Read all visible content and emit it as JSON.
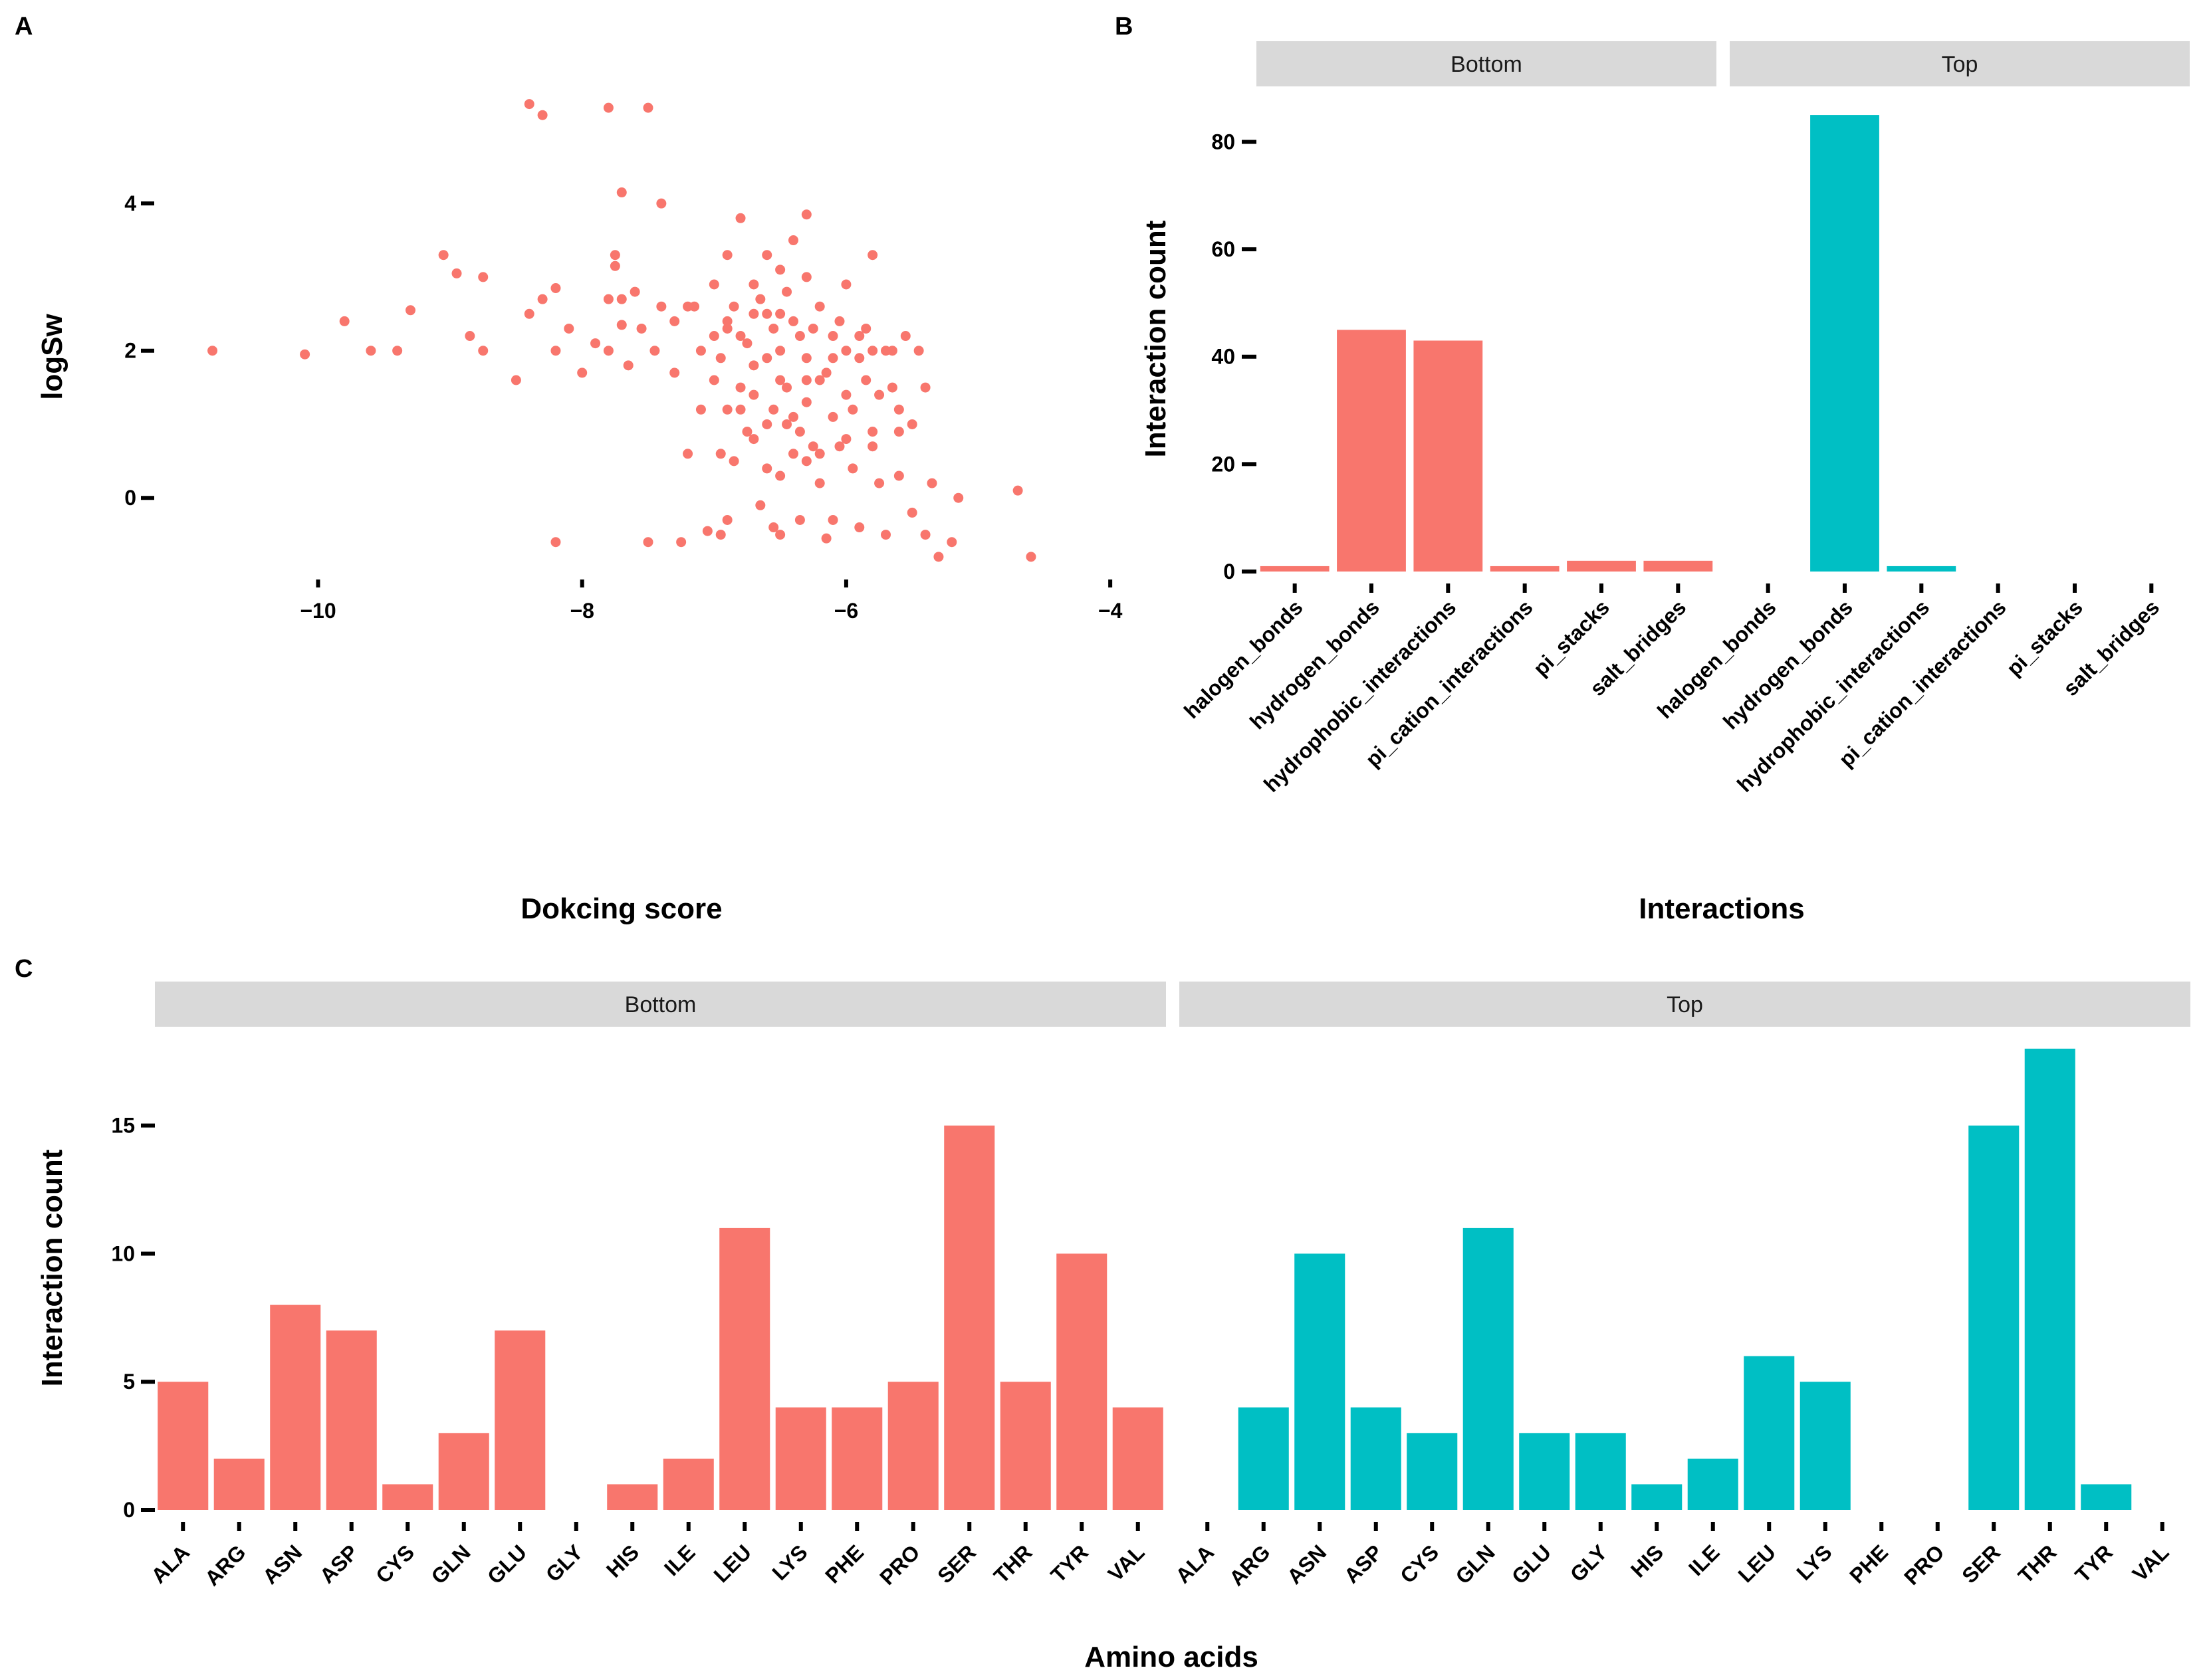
{
  "chart_data": [
    {
      "panel": "A",
      "type": "scatter",
      "xlabel": "Dokcing score",
      "ylabel": "logSw",
      "xlim": [
        -11.1,
        -3.9
      ],
      "ylim": [
        -1.0,
        5.5
      ],
      "xticks": [
        -10,
        -8,
        -6,
        -4
      ],
      "xtick_labels": [
        "−10",
        "−8",
        "−6",
        "−4"
      ],
      "yticks": [
        0,
        2,
        4
      ],
      "ytick_labels": [
        "0",
        "2",
        "4"
      ],
      "color": "#F8766D",
      "points": [
        [
          -10.8,
          2.0
        ],
        [
          -10.1,
          1.95
        ],
        [
          -9.8,
          2.4
        ],
        [
          -9.6,
          2.0
        ],
        [
          -9.4,
          2.0
        ],
        [
          -9.3,
          2.55
        ],
        [
          -9.05,
          3.3
        ],
        [
          -8.95,
          3.05
        ],
        [
          -8.85,
          2.2
        ],
        [
          -8.75,
          3.0
        ],
        [
          -8.75,
          2.0
        ],
        [
          -8.5,
          1.6
        ],
        [
          -8.4,
          5.35
        ],
        [
          -8.4,
          2.5
        ],
        [
          -8.3,
          5.2
        ],
        [
          -8.3,
          2.7
        ],
        [
          -8.2,
          2.85
        ],
        [
          -8.2,
          2.0
        ],
        [
          -8.2,
          -0.6
        ],
        [
          -8.1,
          2.3
        ],
        [
          -8.0,
          1.7
        ],
        [
          -7.9,
          2.1
        ],
        [
          -7.8,
          5.3
        ],
        [
          -7.8,
          2.7
        ],
        [
          -7.8,
          2.0
        ],
        [
          -7.75,
          3.3
        ],
        [
          -7.75,
          3.15
        ],
        [
          -7.7,
          4.15
        ],
        [
          -7.7,
          2.7
        ],
        [
          -7.7,
          2.35
        ],
        [
          -7.65,
          1.8
        ],
        [
          -7.6,
          2.8
        ],
        [
          -7.55,
          2.3
        ],
        [
          -7.5,
          5.3
        ],
        [
          -7.5,
          -0.6
        ],
        [
          -7.45,
          2.0
        ],
        [
          -7.4,
          4.0
        ],
        [
          -7.4,
          2.6
        ],
        [
          -7.3,
          2.4
        ],
        [
          -7.3,
          1.7
        ],
        [
          -7.25,
          -0.6
        ],
        [
          -7.2,
          2.6
        ],
        [
          -7.2,
          0.6
        ],
        [
          -7.15,
          2.6
        ],
        [
          -7.1,
          2.0
        ],
        [
          -7.05,
          -0.45
        ],
        [
          -7.0,
          1.6
        ],
        [
          -6.95,
          0.6
        ],
        [
          -6.95,
          -0.5
        ],
        [
          -6.9,
          3.3
        ],
        [
          -6.9,
          2.3
        ],
        [
          -6.9,
          1.2
        ],
        [
          -6.85,
          0.5
        ],
        [
          -6.8,
          3.8
        ],
        [
          -6.8,
          2.2
        ],
        [
          -6.8,
          1.5
        ],
        [
          -6.75,
          0.9
        ],
        [
          -6.7,
          2.9
        ],
        [
          -6.7,
          1.8
        ],
        [
          -6.7,
          0.8
        ],
        [
          -6.65,
          -0.1
        ],
        [
          -6.6,
          3.3
        ],
        [
          -6.6,
          2.5
        ],
        [
          -6.6,
          1.0
        ],
        [
          -6.55,
          -0.4
        ],
        [
          -6.5,
          3.1
        ],
        [
          -6.5,
          2.0
        ],
        [
          -6.5,
          0.3
        ],
        [
          -6.45,
          1.5
        ],
        [
          -6.4,
          3.5
        ],
        [
          -6.4,
          2.4
        ],
        [
          -6.4,
          0.6
        ],
        [
          -6.35,
          -0.3
        ],
        [
          -6.3,
          3.85
        ],
        [
          -6.3,
          3.0
        ],
        [
          -6.3,
          1.9
        ],
        [
          -6.3,
          1.3
        ],
        [
          -6.25,
          0.7
        ],
        [
          -6.2,
          2.6
        ],
        [
          -6.2,
          1.6
        ],
        [
          -6.2,
          0.2
        ],
        [
          -6.15,
          -0.55
        ],
        [
          -6.1,
          2.2
        ],
        [
          -6.1,
          1.1
        ],
        [
          -6.05,
          0.7
        ],
        [
          -6.0,
          2.9
        ],
        [
          -6.0,
          2.0
        ],
        [
          -6.0,
          1.4
        ],
        [
          -5.95,
          0.4
        ],
        [
          -5.9,
          -0.4
        ],
        [
          -5.9,
          2.2
        ],
        [
          -5.85,
          1.6
        ],
        [
          -5.8,
          3.3
        ],
        [
          -5.8,
          2.0
        ],
        [
          -5.8,
          0.9
        ],
        [
          -5.75,
          0.2
        ],
        [
          -5.7,
          2.0
        ],
        [
          -5.7,
          -0.5
        ],
        [
          -5.65,
          1.5
        ],
        [
          -5.6,
          1.2
        ],
        [
          -5.6,
          0.3
        ],
        [
          -5.55,
          2.2
        ],
        [
          -5.5,
          1.0
        ],
        [
          -5.5,
          -0.2
        ],
        [
          -5.45,
          2.0
        ],
        [
          -5.4,
          1.5
        ],
        [
          -5.4,
          -0.5
        ],
        [
          -5.35,
          0.2
        ],
        [
          -5.3,
          -0.8
        ],
        [
          -5.2,
          -0.6
        ],
        [
          -5.15,
          0.0
        ],
        [
          -4.7,
          0.1
        ],
        [
          -4.6,
          -0.8
        ],
        [
          -6.9,
          2.4
        ],
        [
          -6.85,
          2.6
        ],
        [
          -6.75,
          2.1
        ],
        [
          -6.7,
          1.4
        ],
        [
          -6.65,
          2.7
        ],
        [
          -6.55,
          1.2
        ],
        [
          -6.45,
          2.8
        ],
        [
          -6.4,
          1.1
        ],
        [
          -6.35,
          2.2
        ],
        [
          -6.3,
          1.6
        ],
        [
          -6.25,
          2.3
        ],
        [
          -6.15,
          1.7
        ],
        [
          -6.1,
          1.9
        ],
        [
          -6.05,
          2.4
        ],
        [
          -5.95,
          1.2
        ],
        [
          -5.9,
          1.9
        ],
        [
          -5.85,
          2.3
        ],
        [
          -5.75,
          1.4
        ],
        [
          -5.65,
          2.0
        ],
        [
          -5.6,
          0.9
        ],
        [
          -6.5,
          1.6
        ],
        [
          -6.35,
          0.9
        ],
        [
          -6.2,
          0.6
        ],
        [
          -6.0,
          0.8
        ],
        [
          -5.8,
          0.7
        ],
        [
          -6.6,
          1.9
        ],
        [
          -6.55,
          2.3
        ],
        [
          -6.45,
          1.0
        ],
        [
          -6.3,
          0.5
        ],
        [
          -6.1,
          -0.3
        ],
        [
          -7.0,
          2.2
        ],
        [
          -6.95,
          1.9
        ],
        [
          -6.8,
          1.2
        ],
        [
          -6.7,
          2.5
        ],
        [
          -7.1,
          1.2
        ],
        [
          -6.6,
          0.4
        ],
        [
          -6.5,
          -0.5
        ],
        [
          -6.9,
          -0.3
        ],
        [
          -7.0,
          2.9
        ],
        [
          -6.5,
          2.5
        ]
      ]
    },
    {
      "panel": "B",
      "type": "bar",
      "xlabel": "Interactions",
      "ylabel": "Interaction count",
      "ylim": [
        0,
        86
      ],
      "yticks": [
        0,
        20,
        40,
        60,
        80
      ],
      "ytick_labels": [
        "0",
        "20",
        "40",
        "60",
        "80"
      ],
      "categories": [
        "halogen_bonds",
        "hydrogen_bonds",
        "hydrophobic_interactions",
        "pi_cation_interactions",
        "pi_stacks",
        "salt_bridges"
      ],
      "series": [
        {
          "name": "Bottom",
          "color": "#F8766D",
          "values": [
            1,
            45,
            43,
            1,
            2,
            2
          ]
        },
        {
          "name": "Top",
          "color": "#00BFC4",
          "values": [
            0,
            85,
            1,
            0,
            0,
            0
          ]
        }
      ]
    },
    {
      "panel": "C",
      "type": "bar",
      "xlabel": "Amino acids",
      "ylabel": "Interaction count",
      "ylim": [
        0,
        18
      ],
      "yticks": [
        0,
        5,
        10,
        15
      ],
      "ytick_labels": [
        "0",
        "5",
        "10",
        "15"
      ],
      "categories": [
        "ALA",
        "ARG",
        "ASN",
        "ASP",
        "CYS",
        "GLN",
        "GLU",
        "GLY",
        "HIS",
        "ILE",
        "LEU",
        "LYS",
        "PHE",
        "PRO",
        "SER",
        "THR",
        "TYR",
        "VAL"
      ],
      "series": [
        {
          "name": "Bottom",
          "color": "#F8766D",
          "values": [
            5,
            2,
            8,
            7,
            1,
            3,
            7,
            0,
            1,
            2,
            11,
            4,
            4,
            5,
            15,
            5,
            10,
            4
          ]
        },
        {
          "name": "Top",
          "color": "#00BFC4",
          "values": [
            0,
            4,
            10,
            4,
            3,
            11,
            3,
            3,
            1,
            2,
            6,
            5,
            0,
            0,
            15,
            18,
            1,
            0
          ]
        }
      ]
    }
  ]
}
